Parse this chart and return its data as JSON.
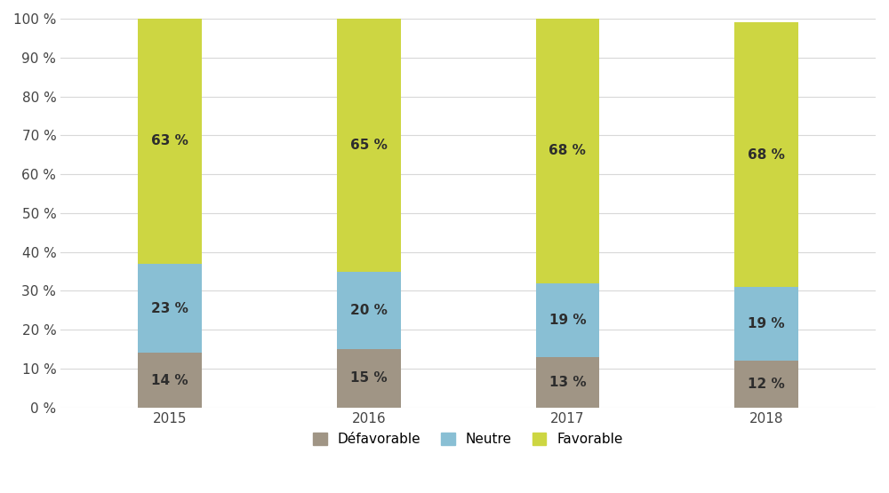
{
  "years": [
    "2015",
    "2016",
    "2017",
    "2018"
  ],
  "defavorable": [
    14,
    15,
    13,
    12
  ],
  "neutre": [
    23,
    20,
    19,
    19
  ],
  "favorable": [
    63,
    65,
    68,
    68
  ],
  "color_defavorable": "#a09585",
  "color_neutre": "#89bfd4",
  "color_favorable": "#cdd642",
  "legend_labels": [
    "Défavorable",
    "Neutre",
    "Favorable"
  ],
  "ylabel_ticks": [
    0,
    10,
    20,
    30,
    40,
    50,
    60,
    70,
    80,
    90,
    100
  ],
  "bar_width": 0.32,
  "background_color": "#ffffff",
  "grid_color": "#d8d8d8",
  "label_fontsize": 11,
  "tick_fontsize": 11,
  "legend_fontsize": 11
}
